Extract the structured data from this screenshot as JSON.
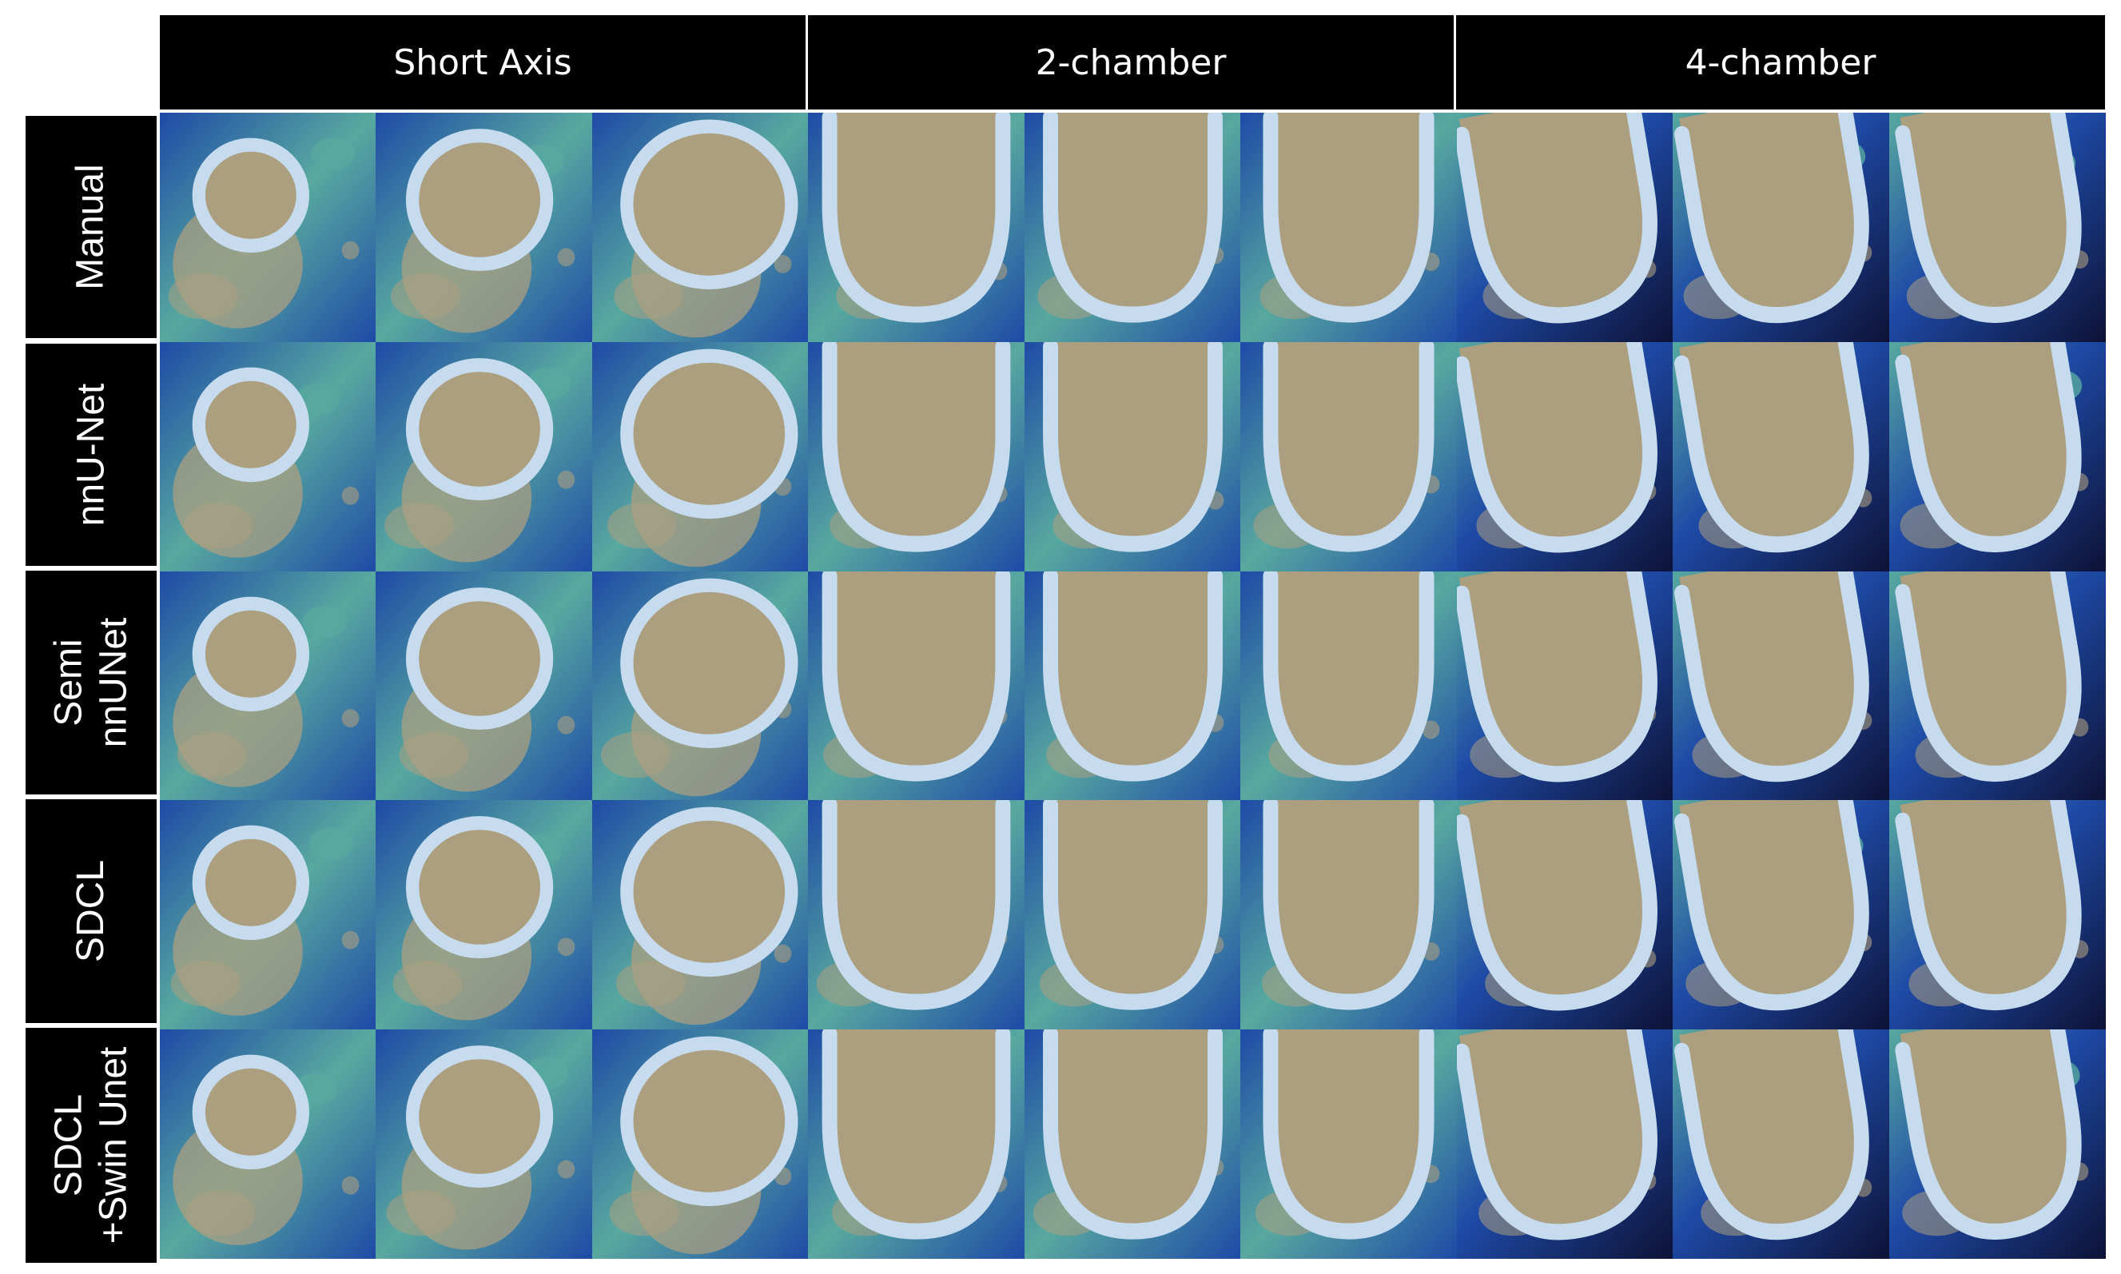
{
  "columns": [
    "Short Axis",
    "2-chamber",
    "4-chamber"
  ],
  "rows": [
    "Manual",
    "nnU-Net",
    "Semi\nnnUNet",
    "SDCL",
    "SDCL\n+Swin Unet"
  ],
  "panels_per_column": 3,
  "colors": {
    "header_bg": "#000000",
    "header_text": "#ffffff",
    "blood_pool": "#ab9f80",
    "myocardium_ring": "#c6dcee",
    "tissue_blue": "#1e4aa6",
    "tissue_green": "#58a9a0",
    "background_dark": "#0d1236"
  }
}
